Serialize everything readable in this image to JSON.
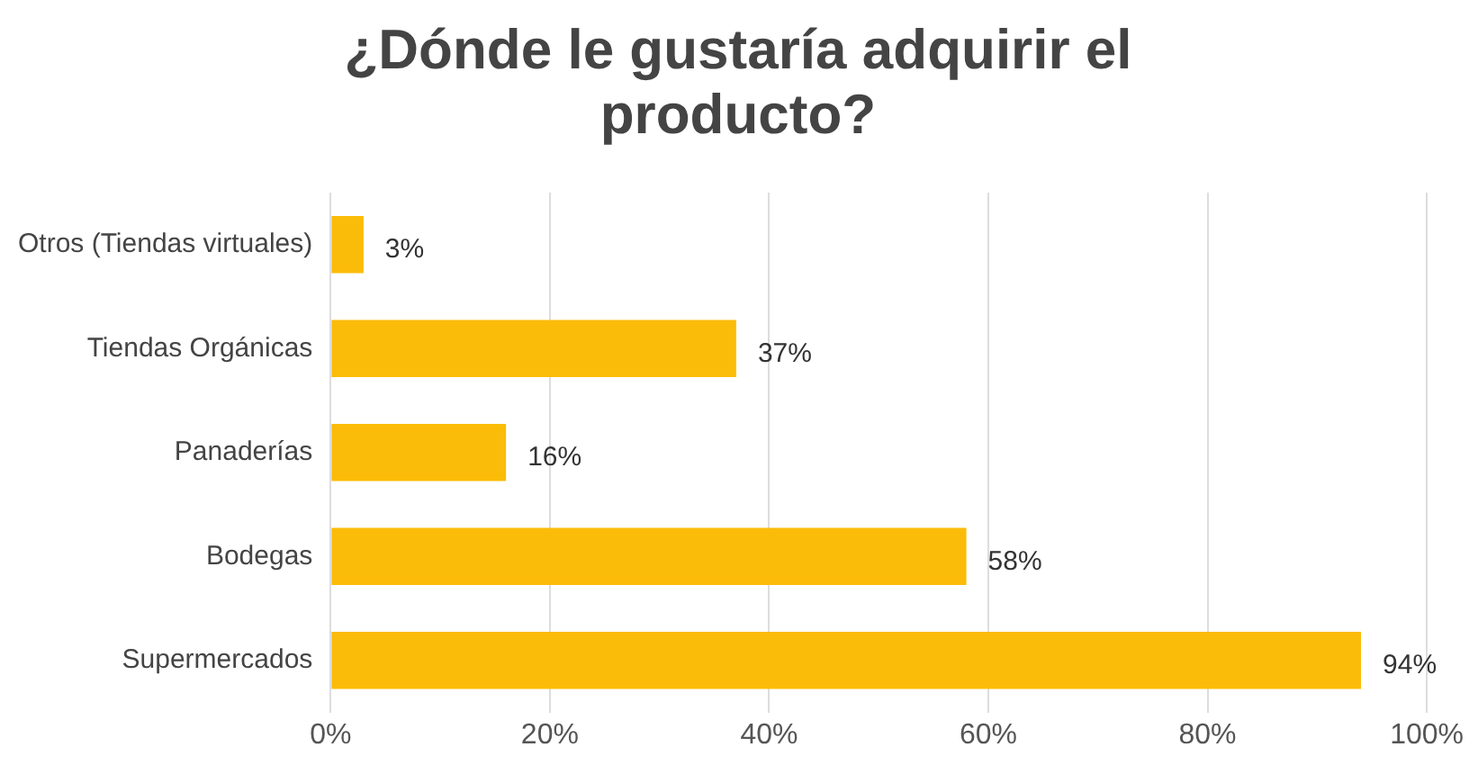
{
  "chart_data": {
    "type": "bar",
    "orientation": "horizontal",
    "title": "¿Dónde le gustaría adquirir el producto?",
    "categories": [
      "Otros (Tiendas virtuales)",
      "Tiendas Orgánicas",
      "Panaderías",
      "Bodegas",
      "Supermercados"
    ],
    "values": [
      3,
      37,
      16,
      58,
      94
    ],
    "color": "#fbbc09",
    "value_labels": [
      "3%",
      "37%",
      "16%",
      "58%",
      "94%"
    ],
    "xlim": [
      0,
      100
    ],
    "xticks": [
      {
        "value": 0,
        "label": "0%"
      },
      {
        "value": 20,
        "label": "20%"
      },
      {
        "value": 40,
        "label": "40%"
      },
      {
        "value": 60,
        "label": "60%"
      },
      {
        "value": 80,
        "label": "80%"
      },
      {
        "value": 100,
        "label": "100%"
      }
    ],
    "grid": "x",
    "legend": false
  }
}
